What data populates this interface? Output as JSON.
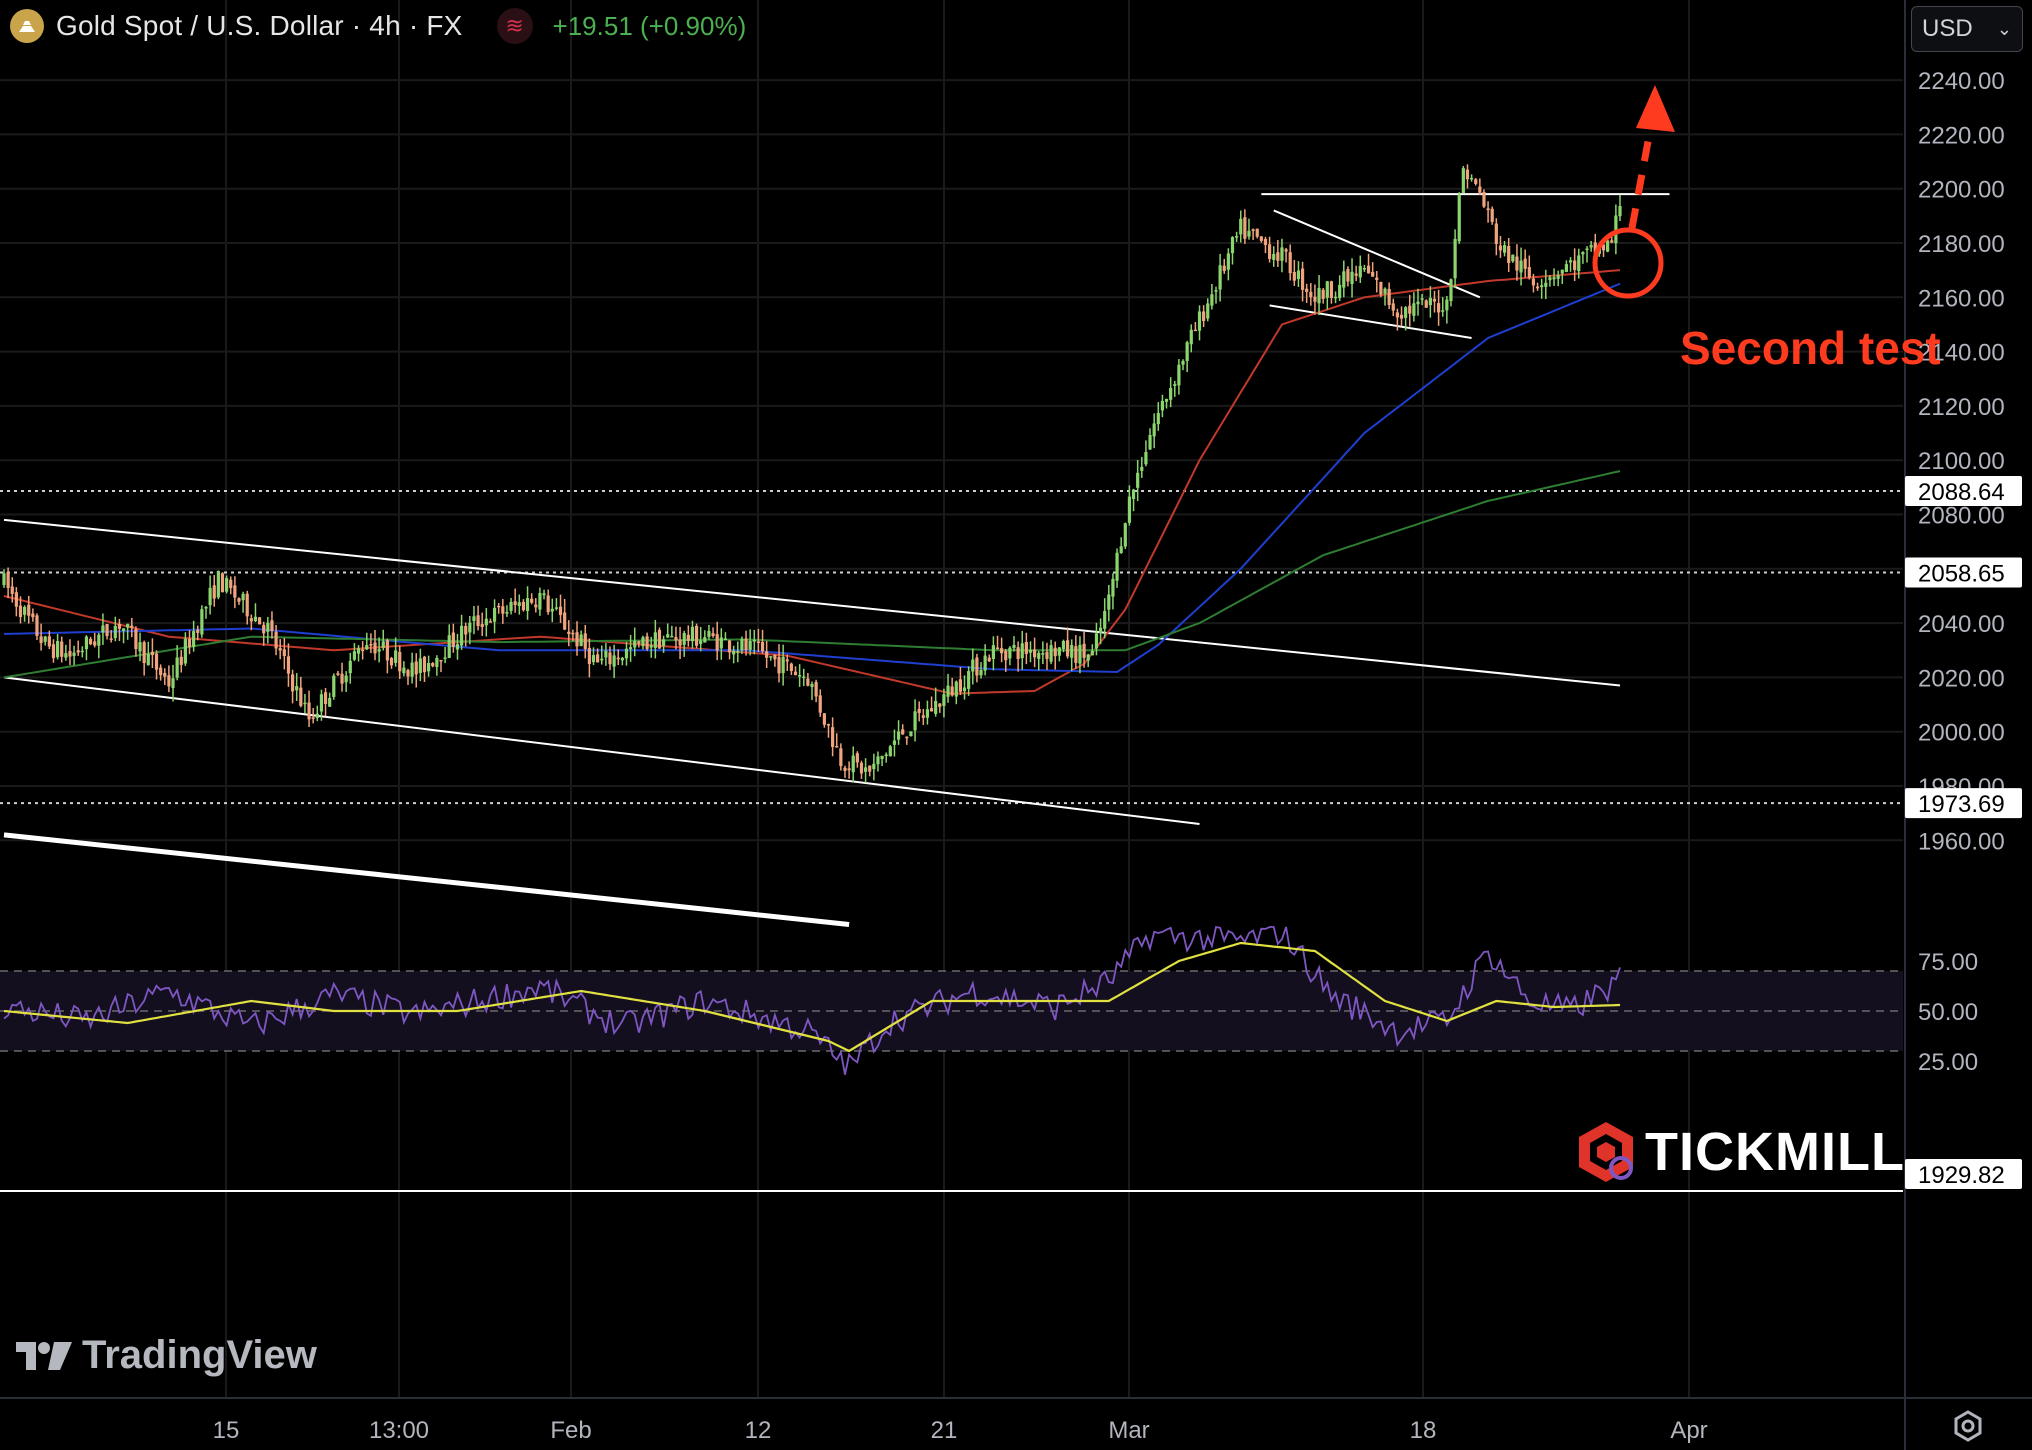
{
  "header": {
    "symbol": "Gold Spot / U.S. Dollar · 4h · FX",
    "change": "+19.51 (+0.90%)",
    "currency": "USD"
  },
  "annotation": {
    "text": "Second test"
  },
  "watermarks": {
    "tickmill": "TICKMILL",
    "tradingview": "TradingView"
  },
  "colors": {
    "background": "#000000",
    "grid": "#1a1a1a",
    "up": "#8bd56f",
    "down": "#f0a47e",
    "ma_fast": "#c0392b",
    "ma_mid": "#1e3fcf",
    "ma_slow": "#2e7d32",
    "rsi": "#7e57c2",
    "rsi_ma": "#e0e040",
    "annotation": "#ff3b1f",
    "change": "#4caf50"
  },
  "chart_data": [
    {
      "type": "candlestick",
      "title": "Gold Spot / U.S. Dollar · 4h · FX",
      "xticks": [
        "15",
        "13:00",
        "Feb",
        "12",
        "21",
        "Mar",
        "18",
        "Apr"
      ],
      "yticks": [
        1960,
        1980,
        2000,
        2020,
        2040,
        2060,
        2080,
        2100,
        2120,
        2140,
        2160,
        2180,
        2200,
        2220,
        2240
      ],
      "ylim": [
        1929,
        2250
      ],
      "price_labels": [
        "2088.64",
        "2058.65",
        "1973.69",
        "1929.82"
      ],
      "dotted_levels": [
        2088.64,
        2058.65,
        1973.69
      ],
      "grid": true,
      "anchors": [
        [
          0,
          2055
        ],
        [
          10,
          2032
        ],
        [
          16,
          2028
        ],
        [
          28,
          2040
        ],
        [
          40,
          2018
        ],
        [
          52,
          2056
        ],
        [
          64,
          2038
        ],
        [
          74,
          2005
        ],
        [
          88,
          2034
        ],
        [
          100,
          2022
        ],
        [
          114,
          2040
        ],
        [
          130,
          2050
        ],
        [
          144,
          2025
        ],
        [
          158,
          2034
        ],
        [
          170,
          2035
        ],
        [
          182,
          2030
        ],
        [
          195,
          2020
        ],
        [
          203,
          1990
        ],
        [
          210,
          1985
        ],
        [
          218,
          2000
        ],
        [
          226,
          2010
        ],
        [
          240,
          2030
        ],
        [
          256,
          2030
        ],
        [
          264,
          2028
        ],
        [
          268,
          2048
        ],
        [
          272,
          2080
        ],
        [
          278,
          2110
        ],
        [
          286,
          2138
        ],
        [
          294,
          2165
        ],
        [
          300,
          2185
        ],
        [
          310,
          2175
        ],
        [
          318,
          2160
        ],
        [
          330,
          2170
        ],
        [
          338,
          2155
        ],
        [
          350,
          2158
        ],
        [
          354,
          2208
        ],
        [
          358,
          2198
        ],
        [
          363,
          2178
        ],
        [
          371,
          2166
        ],
        [
          380,
          2172
        ],
        [
          390,
          2180
        ],
        [
          392,
          2195
        ]
      ],
      "moving_averages": [
        {
          "name": "",
          "color": "#c0392b",
          "points": [
            [
              0,
              2050
            ],
            [
              40,
              2035
            ],
            [
              80,
              2030
            ],
            [
              130,
              2035
            ],
            [
              190,
              2028
            ],
            [
              230,
              2014
            ],
            [
              250,
              2015
            ],
            [
              262,
              2025
            ],
            [
              272,
              2045
            ],
            [
              290,
              2100
            ],
            [
              310,
              2150
            ],
            [
              330,
              2160
            ],
            [
              360,
              2166
            ],
            [
              392,
              2170
            ]
          ]
        },
        {
          "name": "",
          "color": "#1e3fcf",
          "points": [
            [
              0,
              2036
            ],
            [
              60,
              2038
            ],
            [
              120,
              2030
            ],
            [
              180,
              2030
            ],
            [
              240,
              2023
            ],
            [
              270,
              2022
            ],
            [
              280,
              2032
            ],
            [
              300,
              2060
            ],
            [
              330,
              2110
            ],
            [
              360,
              2145
            ],
            [
              392,
              2165
            ]
          ]
        },
        {
          "name": "",
          "color": "#2e7d32",
          "points": [
            [
              0,
              2020
            ],
            [
              60,
              2035
            ],
            [
              120,
              2033
            ],
            [
              180,
              2034
            ],
            [
              240,
              2030
            ],
            [
              272,
              2030
            ],
            [
              290,
              2040
            ],
            [
              320,
              2065
            ],
            [
              360,
              2085
            ],
            [
              392,
              2096
            ]
          ]
        }
      ],
      "trendlines": [
        {
          "from": [
            0,
            2078
          ],
          "to": [
            392,
            2017
          ]
        },
        {
          "from": [
            0,
            2020
          ],
          "to": [
            290,
            1966
          ]
        },
        {
          "from": [
            0,
            1962
          ],
          "to": [
            205,
            1929
          ]
        },
        {
          "from": [
            305,
            2198
          ],
          "to": [
            404,
            2198
          ]
        },
        {
          "from": [
            308,
            2192
          ],
          "to": [
            358,
            2160
          ]
        },
        {
          "from": [
            307,
            2157
          ],
          "to": [
            356,
            2145
          ]
        }
      ]
    },
    {
      "type": "line",
      "title": "",
      "yticks": [
        25,
        50,
        75
      ],
      "ylim": [
        15,
        95
      ],
      "bands": [
        30,
        50,
        70
      ],
      "series": [
        {
          "name": "",
          "color": "#7e57c2",
          "anchors": [
            [
              0,
              52
            ],
            [
              20,
              45
            ],
            [
              40,
              60
            ],
            [
              60,
              42
            ],
            [
              80,
              58
            ],
            [
              100,
              48
            ],
            [
              130,
              62
            ],
            [
              150,
              42
            ],
            [
              170,
              55
            ],
            [
              195,
              40
            ],
            [
              205,
              22
            ],
            [
              215,
              45
            ],
            [
              235,
              60
            ],
            [
              255,
              52
            ],
            [
              268,
              65
            ],
            [
              278,
              88
            ],
            [
              300,
              85
            ],
            [
              310,
              90
            ],
            [
              322,
              58
            ],
            [
              338,
              40
            ],
            [
              350,
              45
            ],
            [
              360,
              80
            ],
            [
              370,
              55
            ],
            [
              380,
              50
            ],
            [
              392,
              65
            ]
          ]
        },
        {
          "name": "",
          "color": "#e0e040",
          "anchors": [
            [
              0,
              50
            ],
            [
              30,
              44
            ],
            [
              60,
              55
            ],
            [
              80,
              50
            ],
            [
              110,
              50
            ],
            [
              140,
              60
            ],
            [
              170,
              50
            ],
            [
              200,
              35
            ],
            [
              205,
              30
            ],
            [
              225,
              55
            ],
            [
              250,
              55
            ],
            [
              268,
              55
            ],
            [
              285,
              75
            ],
            [
              300,
              84
            ],
            [
              318,
              80
            ],
            [
              335,
              55
            ],
            [
              350,
              45
            ],
            [
              362,
              55
            ],
            [
              376,
              52
            ],
            [
              392,
              53
            ]
          ]
        }
      ]
    }
  ]
}
